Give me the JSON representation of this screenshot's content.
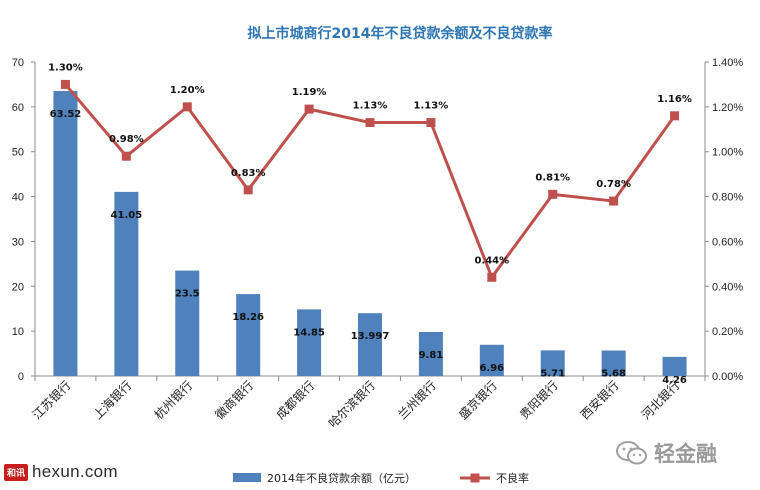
{
  "chart_data": {
    "type": "bar+line",
    "title": "拟上市城商行2014年不良贷款余额及不良贷款率",
    "categories": [
      "江苏银行",
      "上海银行",
      "杭州银行",
      "徽商银行",
      "成都银行",
      "哈尔滨银行",
      "兰州银行",
      "盛京银行",
      "贵阳银行",
      "西安银行",
      "河北银行"
    ],
    "series": [
      {
        "name": "2014年不良贷款余额（亿元）",
        "type": "bar",
        "axis": "left",
        "color": "#4f81bd",
        "values": [
          63.52,
          41.05,
          23.5,
          18.26,
          14.85,
          13.997,
          9.81,
          6.96,
          5.71,
          5.68,
          4.26
        ],
        "labels": [
          "63.52",
          "41.05",
          "23.5",
          "18.26",
          "14.85",
          "13.997",
          "9.81",
          "6.96",
          "5.71",
          "5.68",
          "4.26"
        ]
      },
      {
        "name": "不良率",
        "type": "line",
        "axis": "right",
        "color": "#c0504d",
        "values": [
          1.3,
          0.98,
          1.2,
          0.83,
          1.19,
          1.13,
          1.13,
          0.44,
          0.81,
          0.78,
          1.16
        ],
        "labels": [
          "1.30%",
          "0.98%",
          "1.20%",
          "0.83%",
          "1.19%",
          "1.13%",
          "1.13%",
          "0.44%",
          "0.81%",
          "0.78%",
          "1.16%"
        ]
      }
    ],
    "y_left": {
      "min": 0,
      "max": 70,
      "ticks": [
        "0",
        "10",
        "20",
        "30",
        "40",
        "50",
        "60",
        "70"
      ]
    },
    "y_right": {
      "min": 0,
      "max": 1.4,
      "ticks": [
        "0.00%",
        "0.20%",
        "0.40%",
        "0.60%",
        "0.80%",
        "1.00%",
        "1.20%",
        "1.40%"
      ]
    },
    "legend_position": "bottom",
    "grid": false
  },
  "branding": {
    "source_badge": "和讯",
    "source_site": "hexun.com",
    "watermark": "轻金融"
  }
}
